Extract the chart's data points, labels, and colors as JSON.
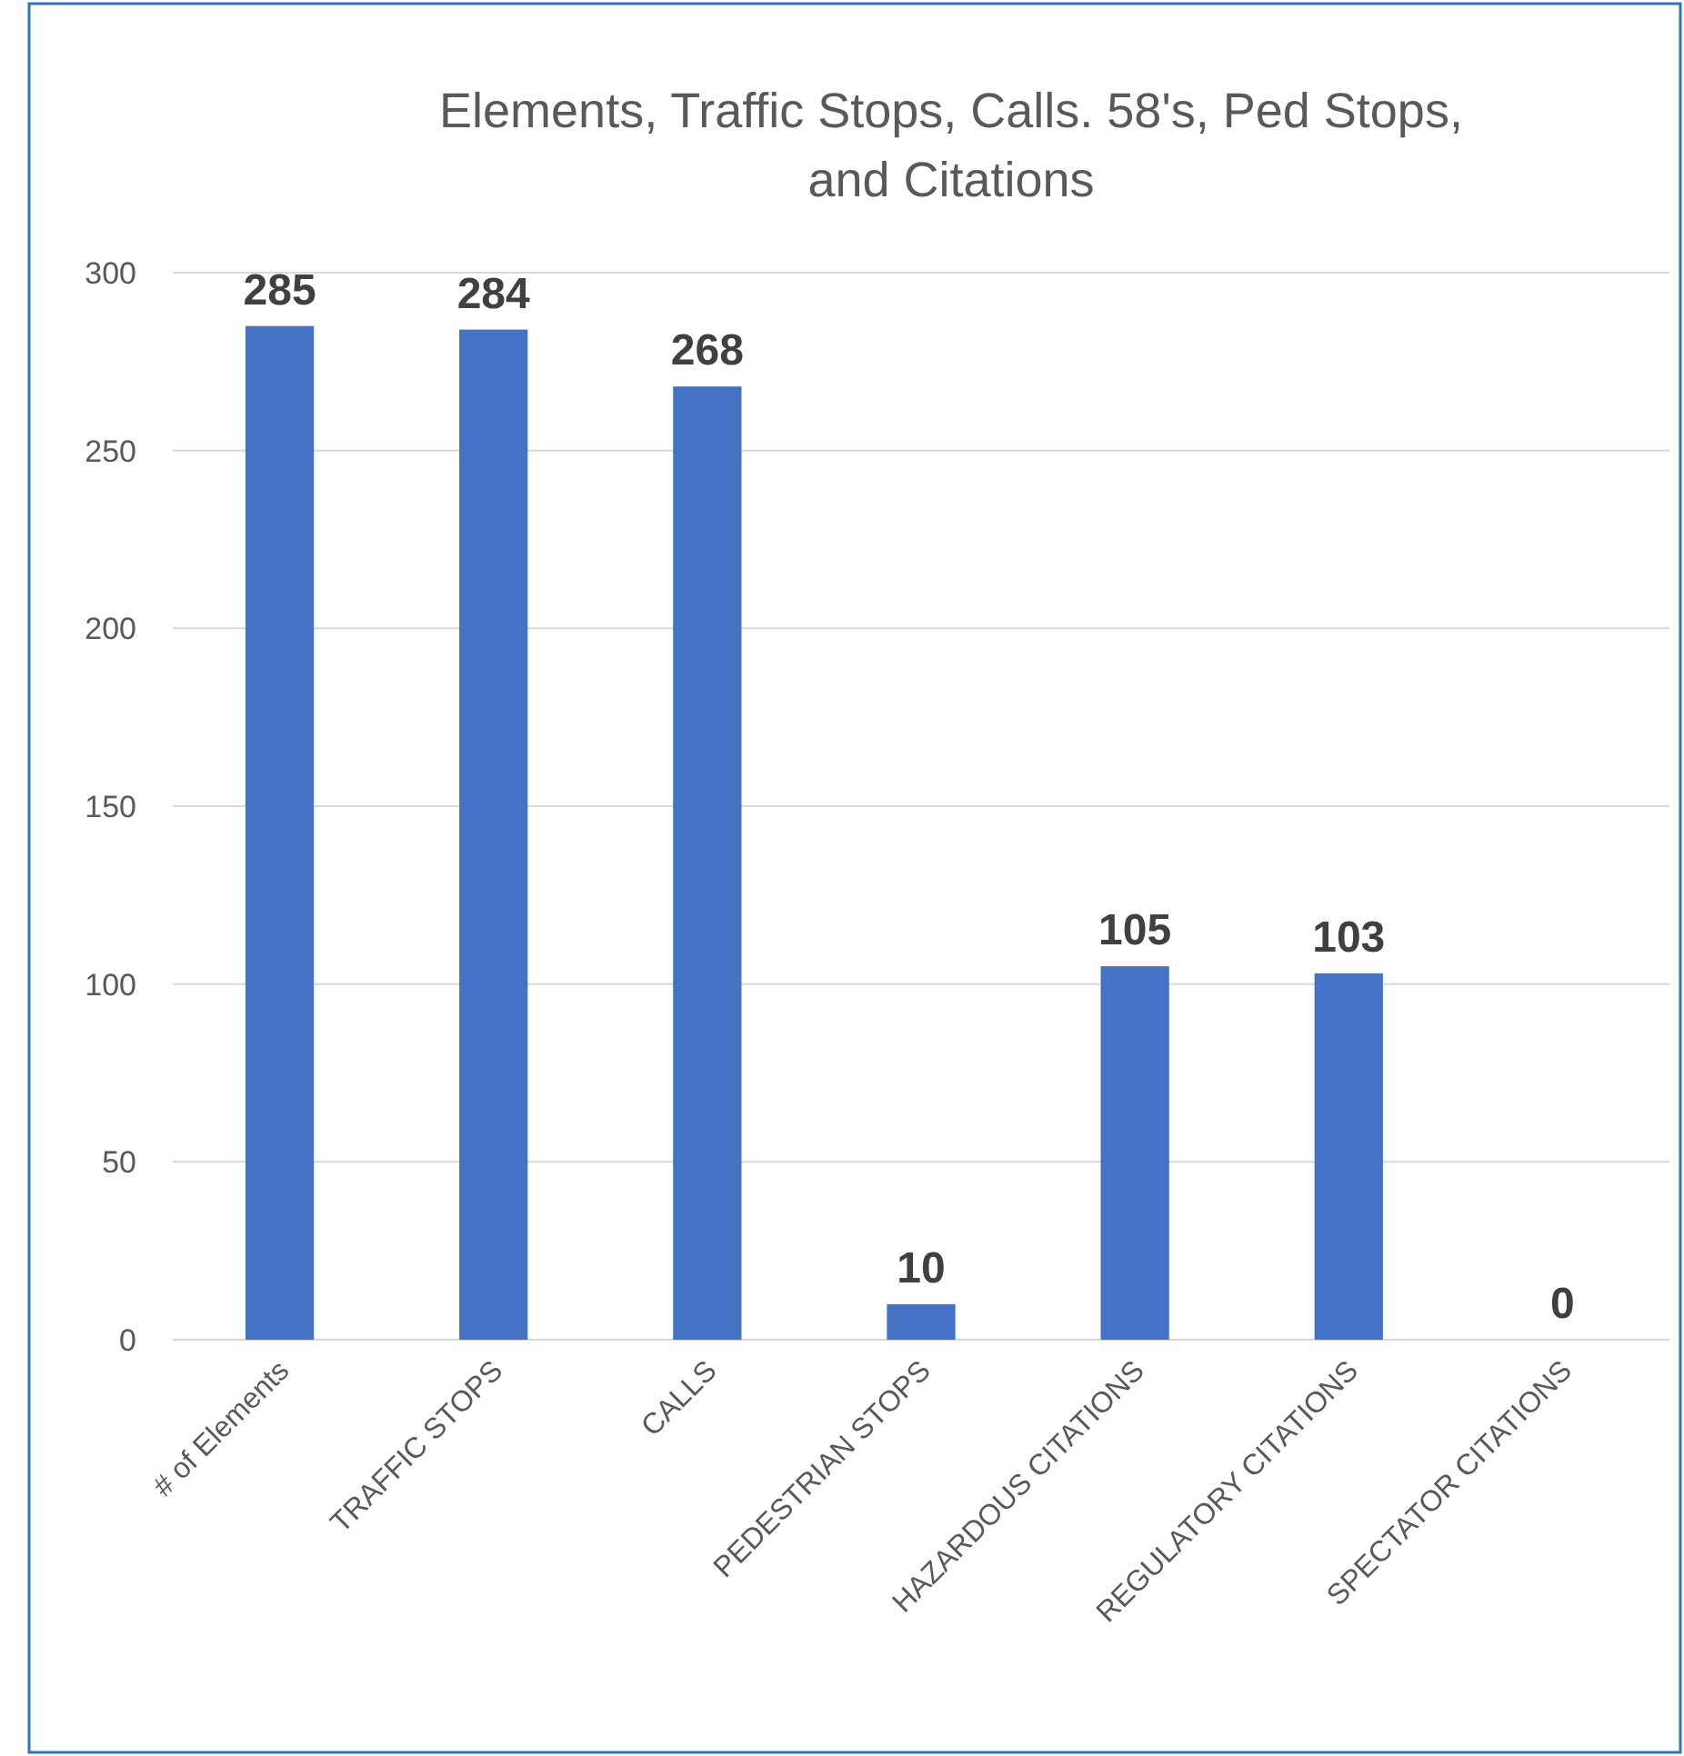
{
  "chart_data": {
    "type": "bar",
    "title": "Elements, Traffic Stops, Calls. 58's, Ped Stops, and Citations",
    "categories": [
      "# of Elements",
      "TRAFFIC STOPS",
      "CALLS",
      "PEDESTRIAN STOPS",
      "HAZARDOUS CITATIONS",
      "REGULATORY CITATIONS",
      "SPECTATOR CITATIONS"
    ],
    "values": [
      285,
      284,
      268,
      10,
      105,
      103,
      0
    ],
    "color": "#4472c4",
    "ylim": [
      0,
      300
    ],
    "yticks": [
      0,
      50,
      100,
      150,
      200,
      250,
      300
    ],
    "grid": "y",
    "data_labels": true
  }
}
